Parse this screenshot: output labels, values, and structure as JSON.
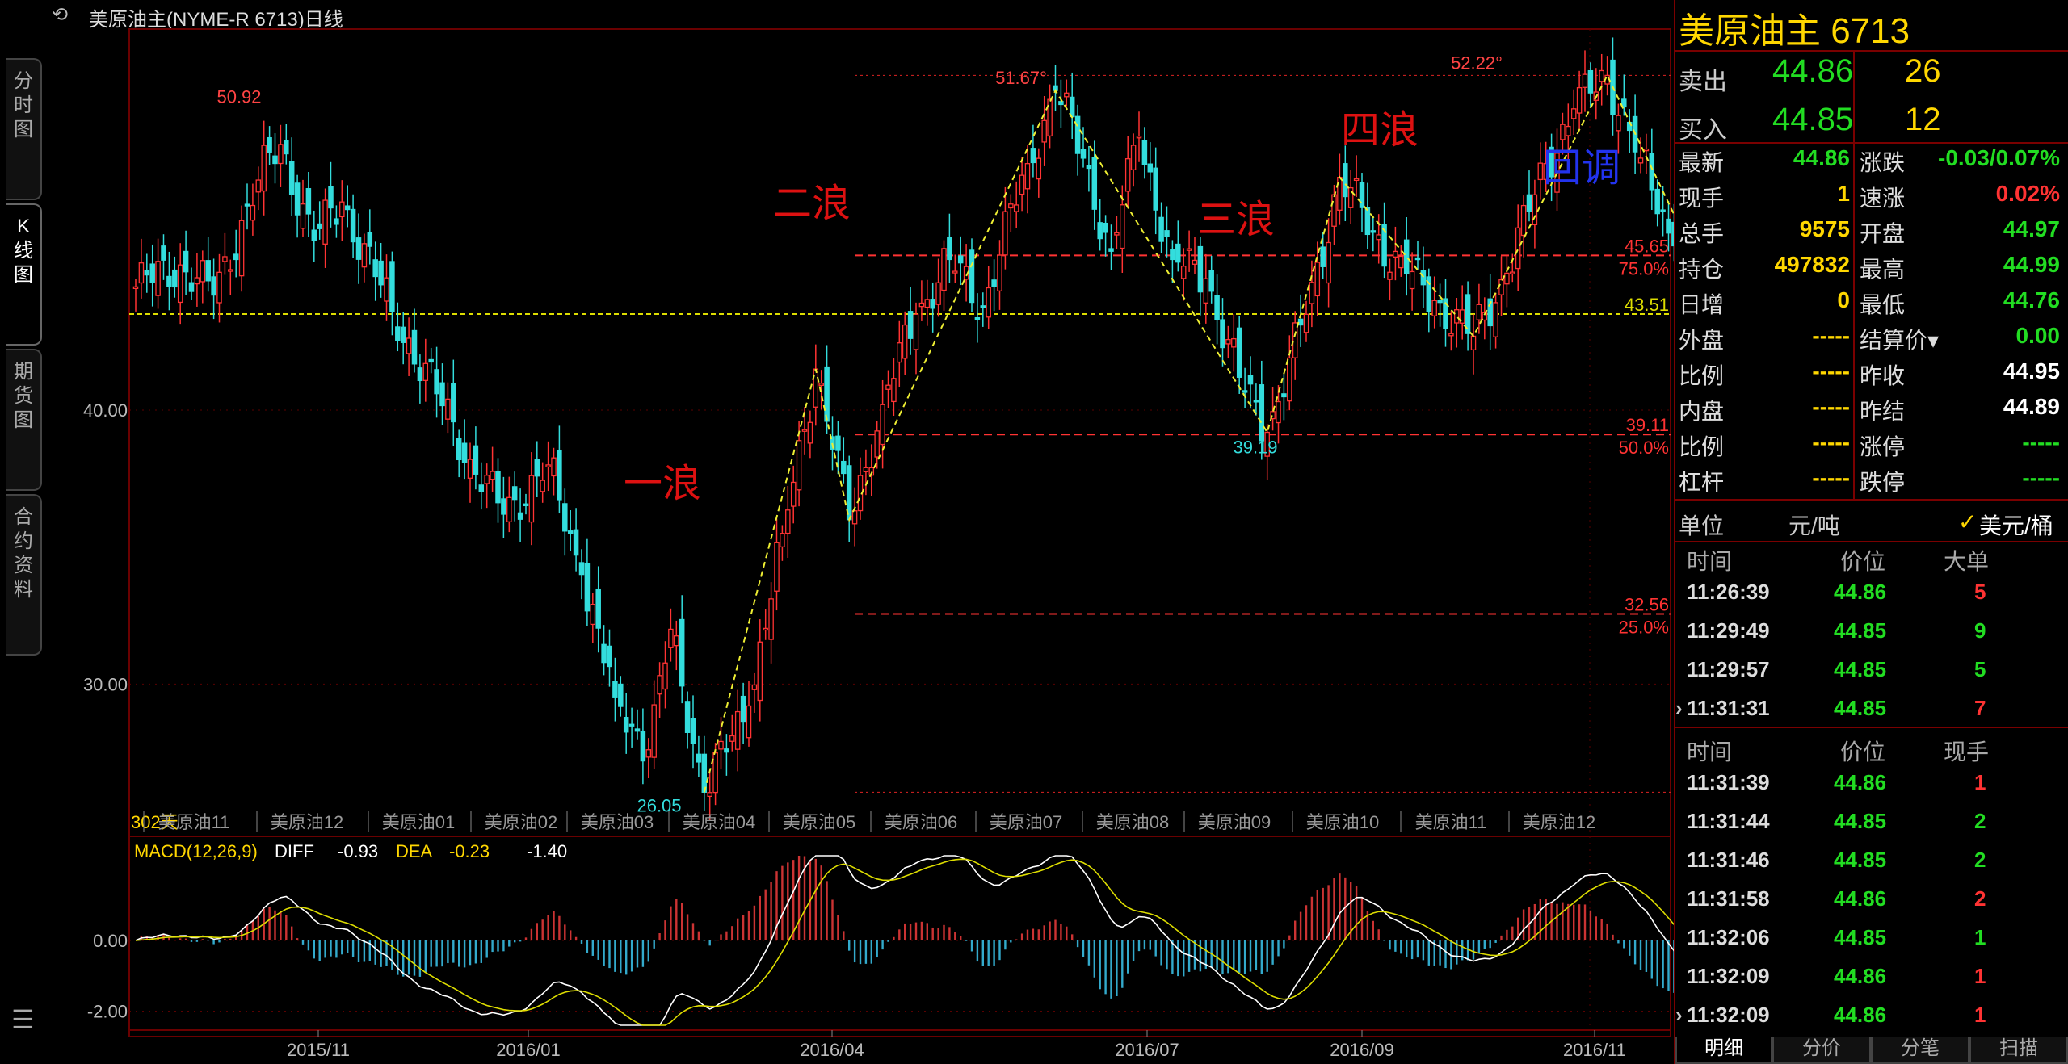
{
  "window": {
    "title": "美原油主(NYME-R 6713)日线"
  },
  "left_tabs": [
    "分时图",
    "K线图",
    "期货图",
    "合约资料"
  ],
  "chart_data": {
    "type": "candlestick",
    "instrument": "美原油主(NYME-R 6713)日线",
    "y_ticks": [
      {
        "value": 40,
        "label": "40.00"
      },
      {
        "value": 30,
        "label": "30.00"
      }
    ],
    "ylim": [
      25.5,
      53.5
    ],
    "days_label": "302天",
    "contract_labels": [
      "美原油11",
      "美原油12",
      "美原油01",
      "美原油02",
      "美原油03",
      "美原油04",
      "美原油05",
      "美原油06",
      "美原油07",
      "美原油08",
      "美原油09",
      "美原油10",
      "美原油11",
      "美原油12"
    ],
    "x_axis_labels": [
      "2015/11",
      "2016/01",
      "2016/04",
      "2016/07",
      "2016/09",
      "2016/11"
    ],
    "anchors": [
      {
        "i": 0,
        "v": 44.5
      },
      {
        "i": 8,
        "v": 45.3
      },
      {
        "i": 14,
        "v": 44.2
      },
      {
        "i": 22,
        "v": 48.4
      },
      {
        "i": 26,
        "v": 49.7
      },
      {
        "i": 32,
        "v": 46.2
      },
      {
        "i": 37,
        "v": 47.6
      },
      {
        "i": 46,
        "v": 43.6
      },
      {
        "i": 54,
        "v": 40.6
      },
      {
        "i": 60,
        "v": 38.2
      },
      {
        "i": 66,
        "v": 36.2
      },
      {
        "i": 74,
        "v": 38.0
      },
      {
        "i": 80,
        "v": 34.0
      },
      {
        "i": 86,
        "v": 29.5
      },
      {
        "i": 92,
        "v": 27.6
      },
      {
        "i": 96,
        "v": 32.0
      },
      {
        "i": 102,
        "v": 26.05
      },
      {
        "i": 110,
        "v": 29.2
      },
      {
        "i": 116,
        "v": 35.5
      },
      {
        "i": 122,
        "v": 41.5
      },
      {
        "i": 128,
        "v": 36.0
      },
      {
        "i": 134,
        "v": 40.2
      },
      {
        "i": 140,
        "v": 43.5
      },
      {
        "i": 146,
        "v": 45.5
      },
      {
        "i": 152,
        "v": 43.8
      },
      {
        "i": 160,
        "v": 49.0
      },
      {
        "i": 165,
        "v": 51.67
      },
      {
        "i": 170,
        "v": 49.2
      },
      {
        "i": 175,
        "v": 45.8
      },
      {
        "i": 180,
        "v": 50.0
      },
      {
        "i": 186,
        "v": 45.5
      },
      {
        "i": 192,
        "v": 44.8
      },
      {
        "i": 198,
        "v": 41.2
      },
      {
        "i": 203,
        "v": 39.19
      },
      {
        "i": 210,
        "v": 43.5
      },
      {
        "i": 216,
        "v": 48.5
      },
      {
        "i": 222,
        "v": 46.5
      },
      {
        "i": 228,
        "v": 45.0
      },
      {
        "i": 233,
        "v": 44.0
      },
      {
        "i": 240,
        "v": 42.7
      },
      {
        "i": 246,
        "v": 45.0
      },
      {
        "i": 253,
        "v": 49.0
      },
      {
        "i": 258,
        "v": 51.0
      },
      {
        "i": 264,
        "v": 52.22
      },
      {
        "i": 270,
        "v": 49.2
      },
      {
        "i": 276,
        "v": 46.0
      },
      {
        "i": 282,
        "v": 44.6
      }
    ],
    "wave_labels": [
      "一浪",
      "二浪",
      "三浪",
      "四浪",
      "回调"
    ],
    "price_labels": [
      {
        "label": "50.92",
        "value": 50.92
      },
      {
        "label": "51.67°",
        "value": 51.67
      },
      {
        "label": "52.22°",
        "value": 52.22
      },
      {
        "label": "26.05",
        "value": 26.05
      },
      {
        "label": "39.19",
        "value": 39.19
      }
    ],
    "levels": [
      {
        "value": 52.22,
        "label": "",
        "pct": "",
        "color": "#dd2222"
      },
      {
        "value": 45.65,
        "label": "45.65",
        "pct": "75.0%",
        "color": "#ff3333"
      },
      {
        "value": 43.51,
        "label": "43.51",
        "pct": "",
        "color": "#dddd00"
      },
      {
        "value": 39.11,
        "label": "39.11",
        "pct": "50.0%",
        "color": "#ff3333"
      },
      {
        "value": 32.56,
        "label": "32.56",
        "pct": "25.0%",
        "color": "#ff3333"
      },
      {
        "value": 26.05,
        "label": "",
        "pct": "",
        "color": "#dd2222"
      }
    ],
    "macd": {
      "label": "MACD(12,26,9)",
      "diff_label": "DIFF",
      "diff_value": "-0.93",
      "dea_label": "DEA",
      "dea_value": "-0.23",
      "macd_value": "-1.40",
      "y_ticks": [
        {
          "value": 0,
          "label": "0.00"
        },
        {
          "value": -2,
          "label": "-2.00"
        }
      ],
      "ylim": [
        -2.4,
        2.4
      ]
    }
  },
  "panel": {
    "title": "美原油主 6713",
    "sell": {
      "label": "卖出",
      "price": "44.86",
      "qty": "26"
    },
    "buy": {
      "label": "买入",
      "price": "44.85",
      "qty": "12"
    },
    "stats": [
      {
        "l1": "最新",
        "v1": "44.86",
        "c1": "green",
        "l2": "涨跌",
        "v2": "-0.03/0.07%",
        "c2": "green"
      },
      {
        "l1": "现手",
        "v1": "1",
        "c1": "yellow",
        "l2": "速涨",
        "v2": "0.02%",
        "c2": "red"
      },
      {
        "l1": "总手",
        "v1": "9575",
        "c1": "yellow",
        "l2": "开盘",
        "v2": "44.97",
        "c2": "green"
      },
      {
        "l1": "持仓",
        "v1": "497832",
        "c1": "yellow",
        "l2": "最高",
        "v2": "44.99",
        "c2": "green"
      },
      {
        "l1": "日增",
        "v1": "0",
        "c1": "yellow",
        "l2": "最低",
        "v2": "44.76",
        "c2": "green"
      },
      {
        "l1": "外盘",
        "v1": "-----",
        "c1": "yellow",
        "l2": "结算价▾",
        "v2": "0.00",
        "c2": "green"
      },
      {
        "l1": "比例",
        "v1": "-----",
        "c1": "yellow",
        "l2": "昨收",
        "v2": "44.95",
        "c2": "white"
      },
      {
        "l1": "内盘",
        "v1": "-----",
        "c1": "yellow",
        "l2": "昨结",
        "v2": "44.89",
        "c2": "white"
      },
      {
        "l1": "比例",
        "v1": "-----",
        "c1": "yellow",
        "l2": "涨停",
        "v2": "-----",
        "c2": "green"
      },
      {
        "l1": "杠杆",
        "v1": "-----",
        "c1": "yellow",
        "l2": "跌停",
        "v2": "-----",
        "c2": "green"
      }
    ],
    "unit": {
      "label": "单位",
      "opt1": "元/吨",
      "check": "✓",
      "opt2": "美元/桶"
    },
    "big_orders": {
      "headers": [
        "时间",
        "价位",
        "大单"
      ],
      "rows": [
        {
          "time": "11:26:39",
          "price": "44.86",
          "qty": "5",
          "qc": "red",
          "mark": ""
        },
        {
          "time": "11:29:49",
          "price": "44.85",
          "qty": "9",
          "qc": "green",
          "mark": ""
        },
        {
          "time": "11:29:57",
          "price": "44.85",
          "qty": "5",
          "qc": "green",
          "mark": ""
        },
        {
          "time": "11:31:31",
          "price": "44.85",
          "qty": "7",
          "qc": "red",
          "mark": "›"
        }
      ]
    },
    "ticks": {
      "headers": [
        "时间",
        "价位",
        "现手"
      ],
      "rows": [
        {
          "time": "11:31:39",
          "price": "44.86",
          "qty": "1",
          "qc": "red",
          "mark": ""
        },
        {
          "time": "11:31:44",
          "price": "44.85",
          "qty": "2",
          "qc": "green",
          "mark": ""
        },
        {
          "time": "11:31:46",
          "price": "44.85",
          "qty": "2",
          "qc": "green",
          "mark": ""
        },
        {
          "time": "11:31:58",
          "price": "44.86",
          "qty": "2",
          "qc": "red",
          "mark": ""
        },
        {
          "time": "11:32:06",
          "price": "44.85",
          "qty": "1",
          "qc": "green",
          "mark": ""
        },
        {
          "time": "11:32:09",
          "price": "44.86",
          "qty": "1",
          "qc": "red",
          "mark": ""
        },
        {
          "time": "11:32:09",
          "price": "44.86",
          "qty": "1",
          "qc": "red",
          "mark": "›"
        }
      ]
    },
    "bottom_tabs": [
      "明细",
      "分价",
      "分笔",
      "扫描"
    ]
  },
  "colors": {
    "up": "#ff3333",
    "down": "#33dddd",
    "macd_up": "#cc3333",
    "macd_down": "#33aacc",
    "diff": "#ffffff",
    "dea": "#dddd00",
    "wave_line": "#eeee33",
    "wave_text": "#dd1111",
    "callback_text": "#2233ee"
  }
}
